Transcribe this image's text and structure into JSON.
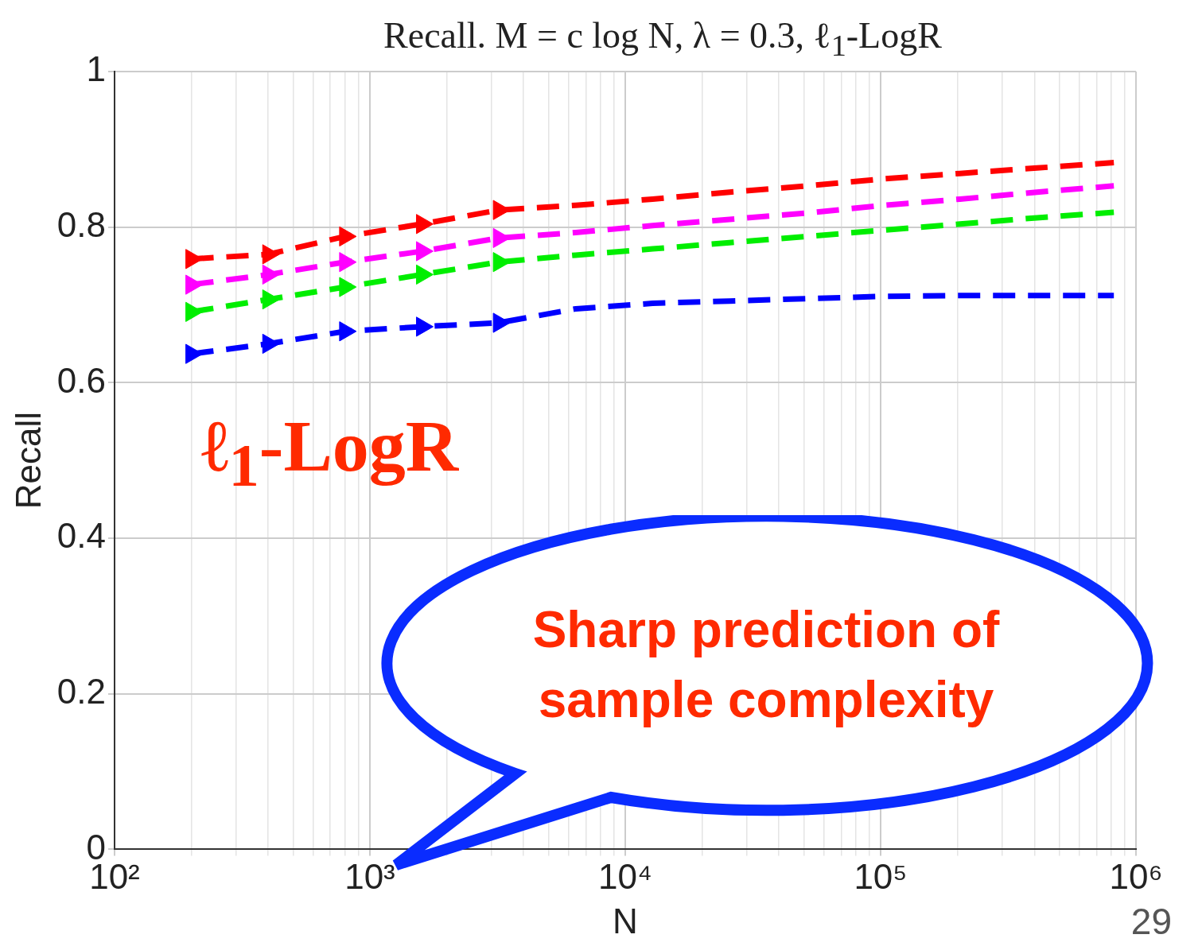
{
  "chart_data": {
    "type": "line",
    "title": "Recall.  M = c log N, λ = 0.3, ℓ$_{1}$-LogR",
    "xlabel": "N",
    "ylabel": "Recall",
    "x": [
      200,
      400,
      800,
      1600,
      3200,
      6400,
      12800,
      25600,
      51200,
      102400,
      204800,
      409600,
      819200
    ],
    "series": [
      {
        "color": "#ff0000",
        "values": [
          0.759,
          0.765,
          0.788,
          0.804,
          0.822,
          0.828,
          0.836,
          0.845,
          0.853,
          0.862,
          0.869,
          0.876,
          0.883
        ]
      },
      {
        "color": "#ff00ff",
        "values": [
          0.726,
          0.739,
          0.755,
          0.769,
          0.786,
          0.793,
          0.802,
          0.81,
          0.818,
          0.828,
          0.836,
          0.845,
          0.853
        ]
      },
      {
        "color": "#00ee00",
        "values": [
          0.691,
          0.707,
          0.723,
          0.739,
          0.755,
          0.764,
          0.772,
          0.78,
          0.788,
          0.796,
          0.804,
          0.812,
          0.819
        ]
      },
      {
        "color": "#0000ff",
        "values": [
          0.637,
          0.65,
          0.666,
          0.672,
          0.677,
          0.695,
          0.702,
          0.705,
          0.708,
          0.711,
          0.712,
          0.712,
          0.712
        ]
      },
      {
        "type": "scatter",
        "marker": "triangle",
        "color": "#ff0000",
        "x": [
          200,
          400,
          800,
          1600,
          3200
        ],
        "values": [
          0.759,
          0.765,
          0.788,
          0.804,
          0.822
        ]
      },
      {
        "type": "scatter",
        "marker": "triangle",
        "color": "#ff00ff",
        "x": [
          200,
          400,
          800,
          1600,
          3200
        ],
        "values": [
          0.726,
          0.739,
          0.755,
          0.769,
          0.786
        ]
      },
      {
        "type": "scatter",
        "marker": "triangle",
        "color": "#00ee00",
        "x": [
          200,
          400,
          800,
          1600,
          3200
        ],
        "values": [
          0.691,
          0.707,
          0.723,
          0.739,
          0.755
        ]
      },
      {
        "type": "scatter",
        "marker": "triangle",
        "color": "#0000ff",
        "x": [
          200,
          400,
          800,
          1600,
          3200
        ],
        "values": [
          0.637,
          0.65,
          0.666,
          0.672,
          0.677
        ]
      }
    ],
    "log": "x",
    "xlim": [
      100,
      1000000
    ],
    "xticks": [
      {
        "value": 100,
        "label": "10²"
      },
      {
        "value": 200,
        "label": null
      },
      {
        "value": 300,
        "label": null
      },
      {
        "value": 400,
        "label": null
      },
      {
        "value": 500,
        "label": null
      },
      {
        "value": 600,
        "label": null
      },
      {
        "value": 700,
        "label": null
      },
      {
        "value": 800,
        "label": null
      },
      {
        "value": 900,
        "label": null
      },
      {
        "value": 1000,
        "label": "10³"
      },
      {
        "value": 2000,
        "label": null
      },
      {
        "value": 3000,
        "label": null
      },
      {
        "value": 4000,
        "label": null
      },
      {
        "value": 5000,
        "label": null
      },
      {
        "value": 6000,
        "label": null
      },
      {
        "value": 7000,
        "label": null
      },
      {
        "value": 8000,
        "label": null
      },
      {
        "value": 9000,
        "label": null
      },
      {
        "value": 10000,
        "label": "10⁴"
      },
      {
        "value": 20000,
        "label": null
      },
      {
        "value": 30000,
        "label": null
      },
      {
        "value": 40000,
        "label": null
      },
      {
        "value": 50000,
        "label": null
      },
      {
        "value": 60000,
        "label": null
      },
      {
        "value": 70000,
        "label": null
      },
      {
        "value": 80000,
        "label": null
      },
      {
        "value": 90000,
        "label": null
      },
      {
        "value": 100000,
        "label": "10⁵"
      },
      {
        "value": 200000,
        "label": null
      },
      {
        "value": 300000,
        "label": null
      },
      {
        "value": 400000,
        "label": null
      },
      {
        "value": 500000,
        "label": null
      },
      {
        "value": 600000,
        "label": null
      },
      {
        "value": 700000,
        "label": null
      },
      {
        "value": 800000,
        "label": null
      },
      {
        "value": 900000,
        "label": null
      },
      {
        "value": 1000000,
        "label": "10⁶"
      }
    ],
    "ylim": [
      0,
      1
    ],
    "yticks": [
      0,
      0.2,
      0.4,
      0.6,
      0.8,
      1
    ],
    "grid": true,
    "legend": false,
    "marker": "none",
    "line_style": "dashed",
    "annotations": [
      "ℓ$_{1}$-LogR",
      "Sharp prediction of sample complexity",
      "29"
    ]
  }
}
